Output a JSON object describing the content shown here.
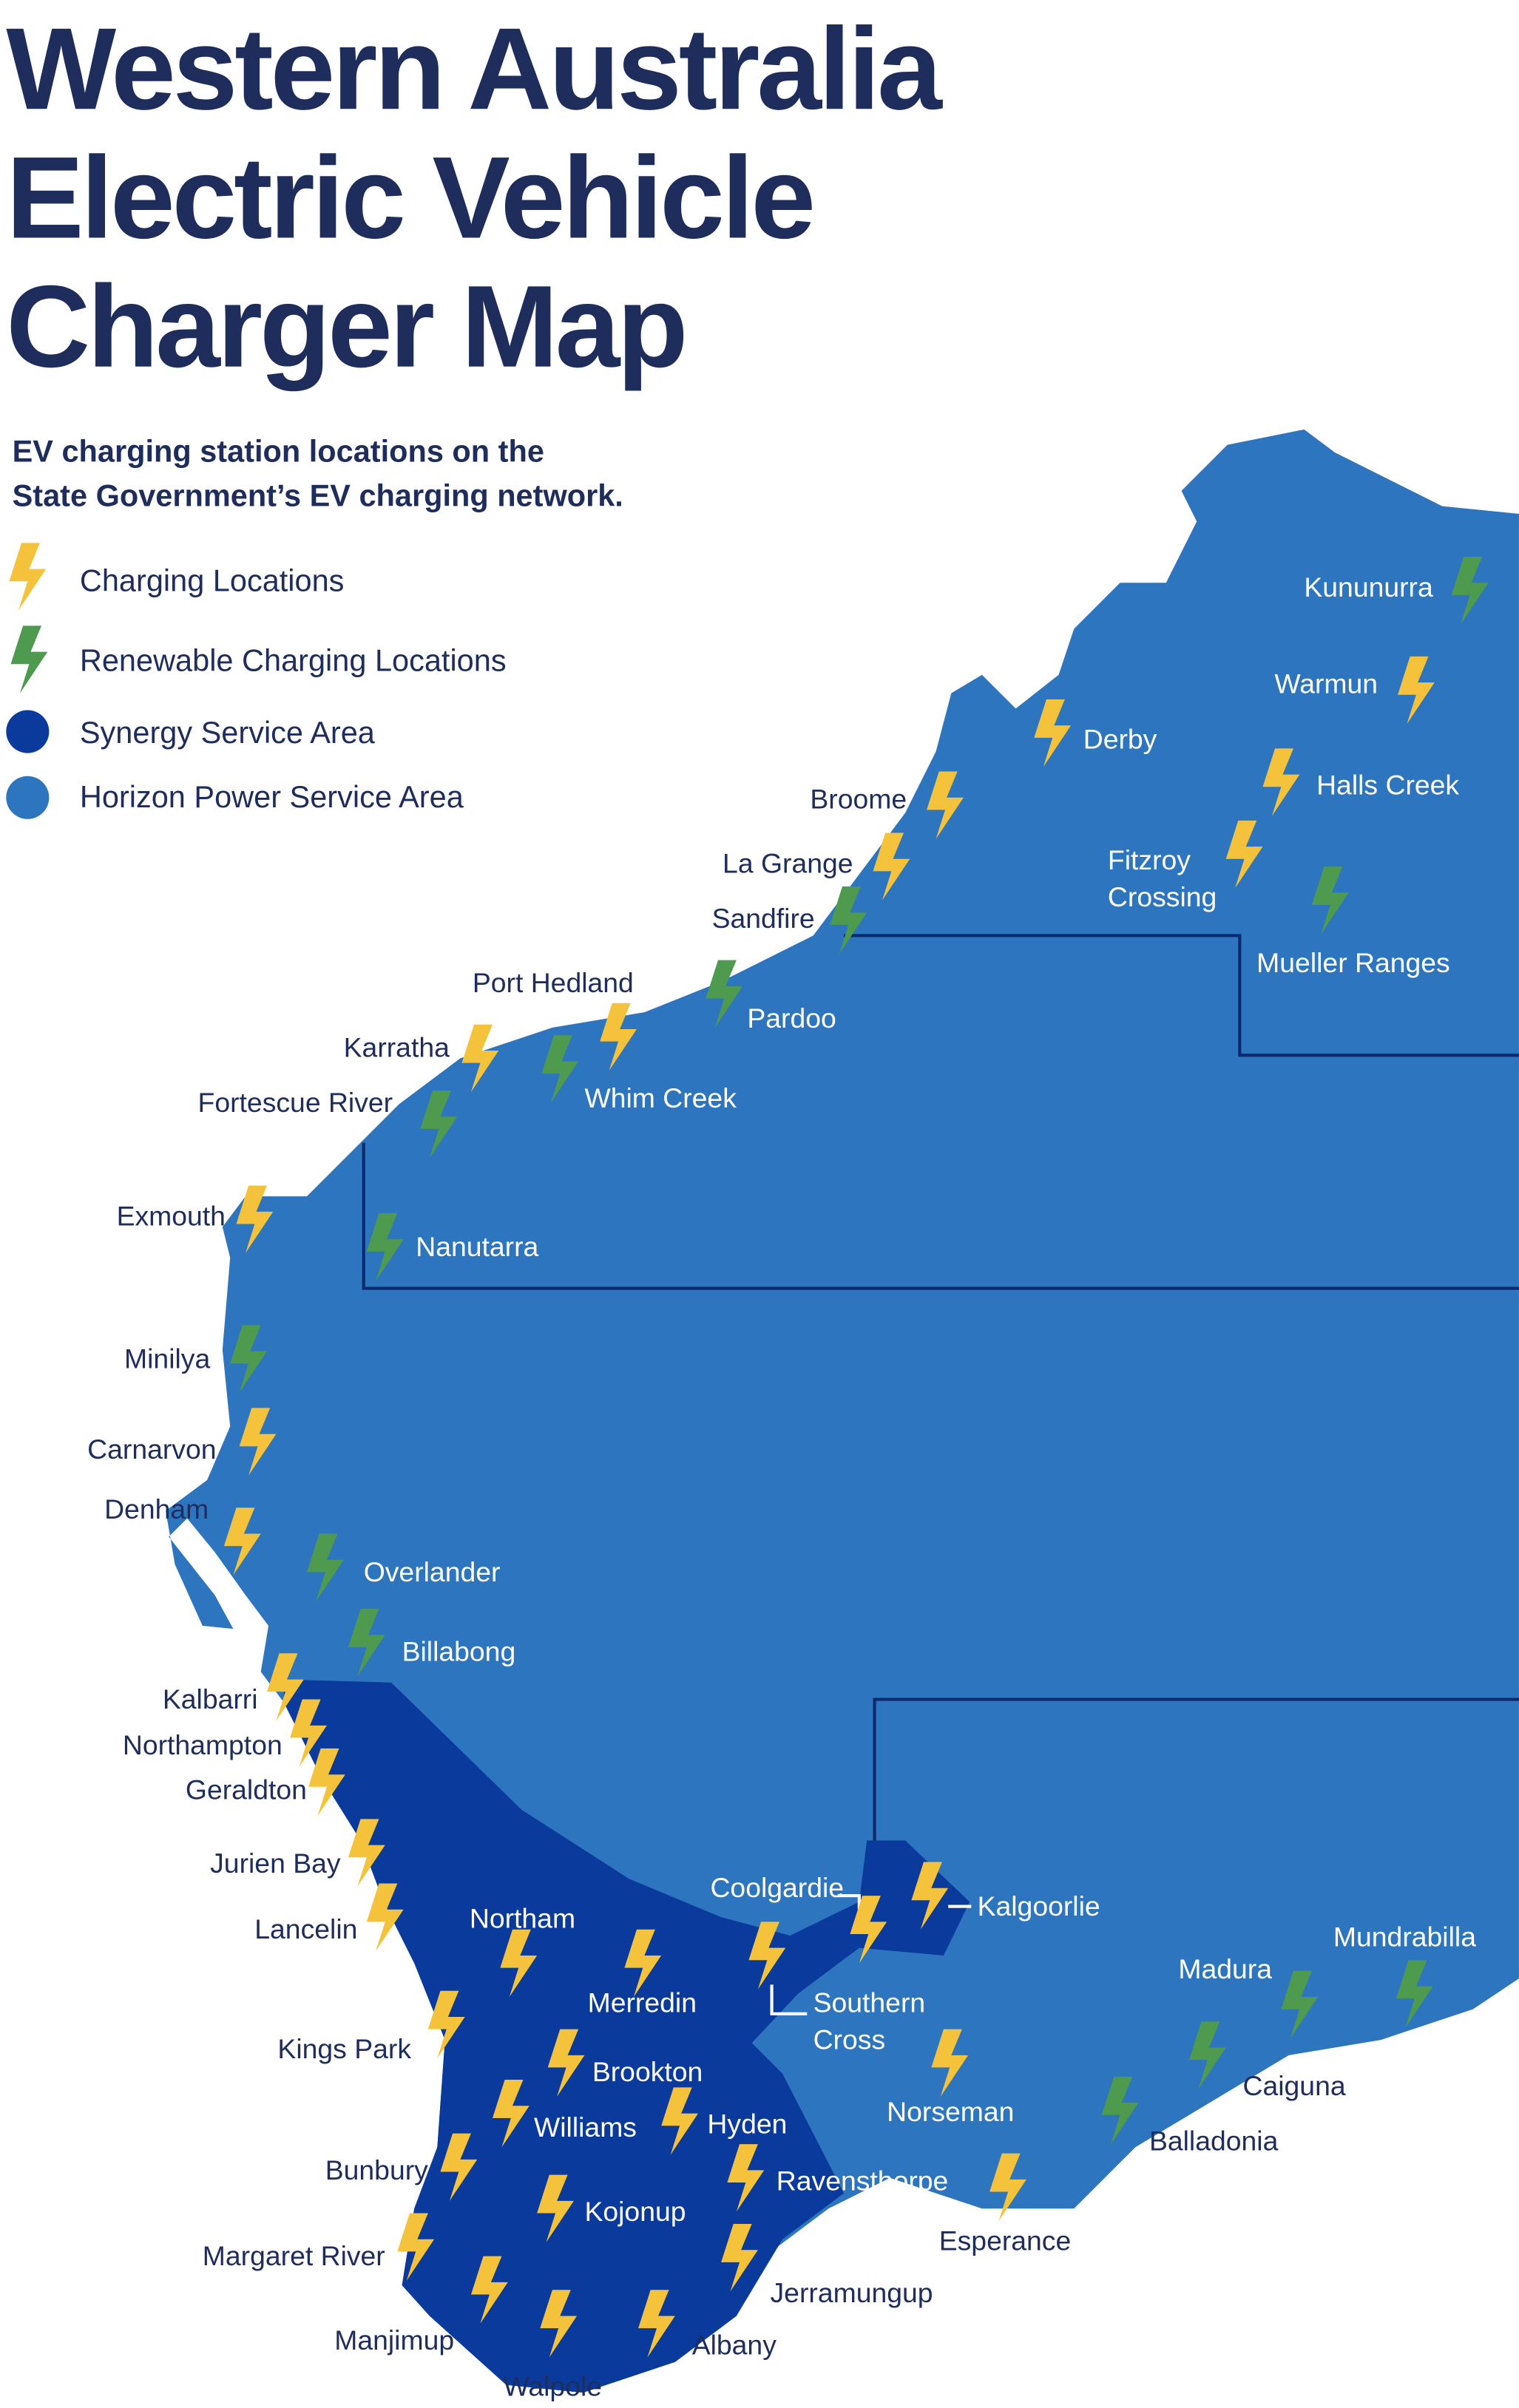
{
  "title": [
    "Western Australia",
    "Electric Vehicle",
    "Charger Map"
  ],
  "subtitle": [
    "EV charging station locations on the",
    "State Government’s EV charging network."
  ],
  "legend": [
    "Charging Locations",
    "Renewable Charging Locations",
    "Synergy Service Area",
    "Horizon Power Service Area"
  ],
  "charging_locations": [
    "Warmun",
    "Derby",
    "Halls Creek",
    "Broome",
    "Fitzroy Crossing",
    "La Grange",
    "Port Hedland",
    "Karratha",
    "Exmouth",
    "Carnarvon",
    "Denham",
    "Kalbarri",
    "Northampton",
    "Geraldton",
    "Jurien Bay",
    "Lancelin",
    "Northam",
    "Merredin",
    "Coolgardie",
    "Kalgoorlie",
    "Southern Cross",
    "Kings Park",
    "Brookton",
    "Williams",
    "Hyden",
    "Norseman",
    "Bunbury",
    "Ravensthorpe",
    "Kojonup",
    "Esperance",
    "Margaret River",
    "Jerramungup",
    "Manjimup",
    "Walpole",
    "Albany"
  ],
  "renewable_locations": [
    "Kununurra",
    "Sandfire",
    "Mueller Ranges",
    "Pardoo",
    "Whim Creek",
    "Fortescue River",
    "Nanutarra",
    "Minilya",
    "Overlander",
    "Billabong",
    "Mundrabilla",
    "Madura",
    "Caiguna",
    "Balladonia"
  ]
}
